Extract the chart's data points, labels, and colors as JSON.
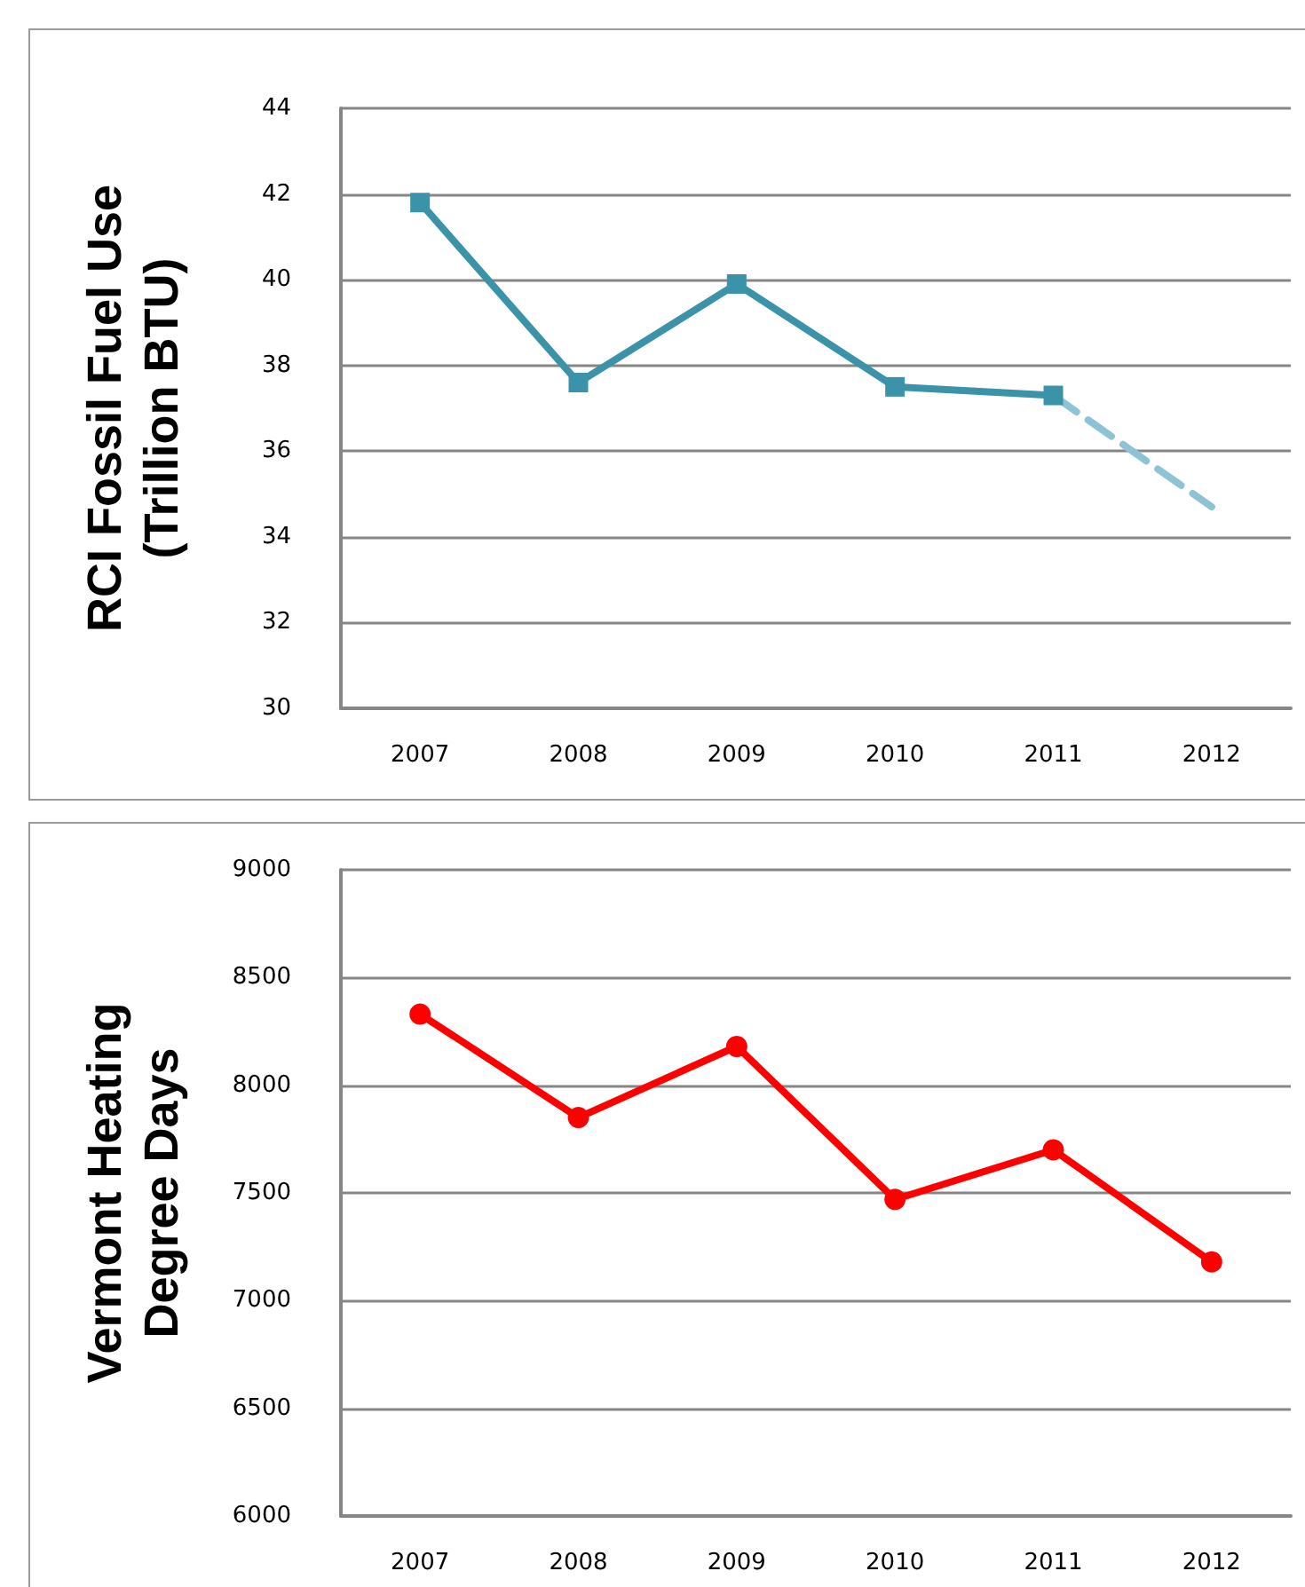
{
  "chart_data": [
    {
      "type": "line",
      "ylabel": "RCI Fossil Fuel Use\n(Trillion BTU)",
      "categories": [
        "2007",
        "2008",
        "2009",
        "2010",
        "2011",
        "2012"
      ],
      "series": [
        {
          "color": "#3a93a8",
          "marker": "square",
          "line_style": "solid",
          "values": [
            41.8,
            37.6,
            39.9,
            37.5,
            37.3,
            null
          ]
        },
        {
          "color": "#8ec3d6",
          "line_style": "dashed",
          "values": [
            null,
            null,
            null,
            null,
            37.3,
            34.7
          ]
        }
      ],
      "ylim": [
        30,
        44
      ],
      "yticks": [
        30,
        32,
        34,
        36,
        38,
        40,
        42,
        44
      ],
      "grid": "y"
    },
    {
      "type": "line",
      "ylabel": "Vermont Heating\nDegree Days",
      "categories": [
        "2007",
        "2008",
        "2009",
        "2010",
        "2011",
        "2012"
      ],
      "series": [
        {
          "color": "#ff0000",
          "marker": "circle",
          "line_style": "solid",
          "values": [
            8330,
            7850,
            8180,
            7470,
            7700,
            7180
          ]
        }
      ],
      "ylim": [
        6000,
        9000
      ],
      "yticks": [
        6000,
        6500,
        7000,
        7500,
        8000,
        8500,
        9000
      ],
      "grid": "y"
    }
  ]
}
